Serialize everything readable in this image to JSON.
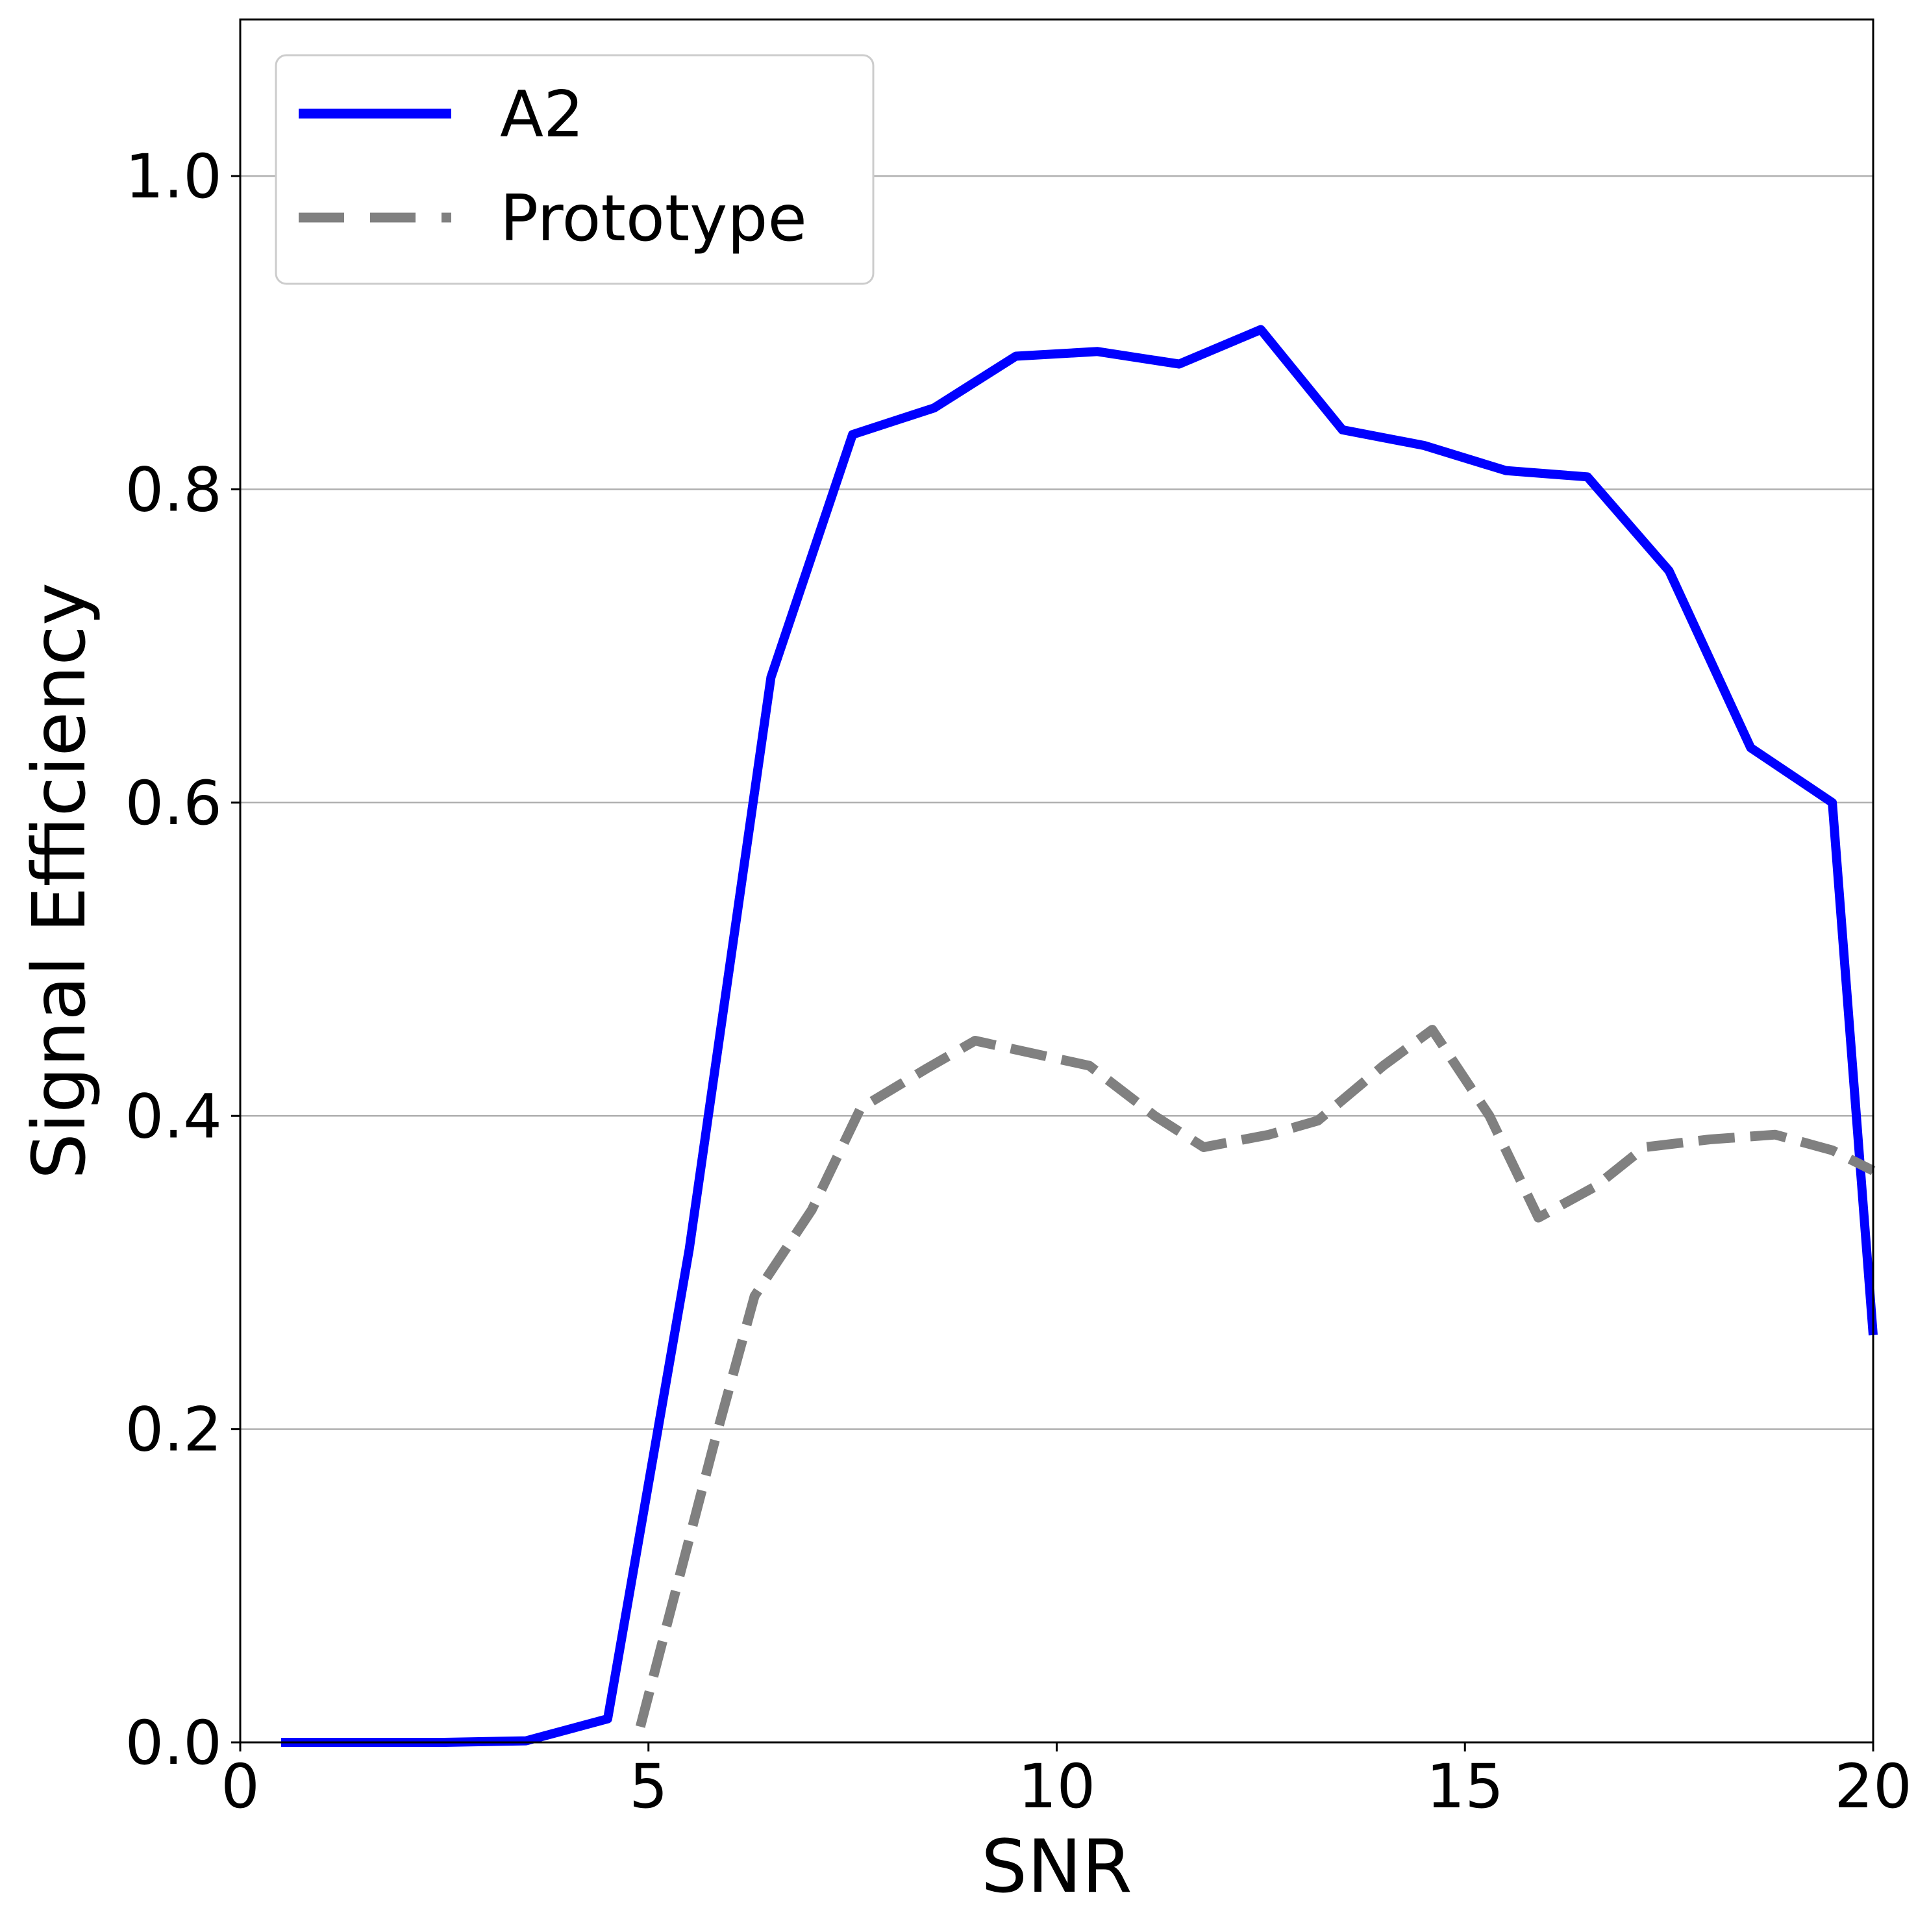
{
  "chart_data": {
    "type": "line",
    "xlabel": "SNR",
    "ylabel": "Signal Efficiency",
    "xlim": [
      0,
      20
    ],
    "ylim": [
      0,
      1.1
    ],
    "x_ticks": [
      "0",
      "5",
      "10",
      "15",
      "20"
    ],
    "y_ticks": [
      "0.0",
      "0.2",
      "0.4",
      "0.6",
      "0.8",
      "1.0"
    ],
    "grid": "horizontal",
    "legend_position": "top-left",
    "series": [
      {
        "name": "A2",
        "color": "#0000ff",
        "style": "solid",
        "x": [
          0.5,
          1.5,
          2.5,
          3.5,
          4.5,
          5.5,
          6.5,
          7.5,
          8.5,
          9.5,
          10.5,
          11.5,
          12.5,
          13.5,
          14.5,
          15.5,
          16.5,
          17.5,
          18.5,
          19.5,
          20.0
        ],
        "y": [
          0.0,
          0.0,
          0.0,
          0.001,
          0.015,
          0.315,
          0.68,
          0.835,
          0.852,
          0.885,
          0.888,
          0.88,
          0.902,
          0.838,
          0.828,
          0.812,
          0.808,
          0.748,
          0.635,
          0.6,
          0.26
        ]
      },
      {
        "name": "Prototype",
        "color": "#808080",
        "style": "dashed",
        "x": [
          4.9,
          5.3,
          5.8,
          6.3,
          7.0,
          7.6,
          8.4,
          9.0,
          9.7,
          10.4,
          11.2,
          11.8,
          12.6,
          13.2,
          14.0,
          14.6,
          15.3,
          15.9,
          16.6,
          17.2,
          18.0,
          18.8,
          19.5,
          20.0
        ],
        "y": [
          0.01,
          0.09,
          0.19,
          0.285,
          0.34,
          0.405,
          0.43,
          0.448,
          0.44,
          0.432,
          0.4,
          0.38,
          0.388,
          0.397,
          0.432,
          0.455,
          0.4,
          0.335,
          0.355,
          0.38,
          0.385,
          0.388,
          0.378,
          0.365
        ]
      }
    ]
  }
}
